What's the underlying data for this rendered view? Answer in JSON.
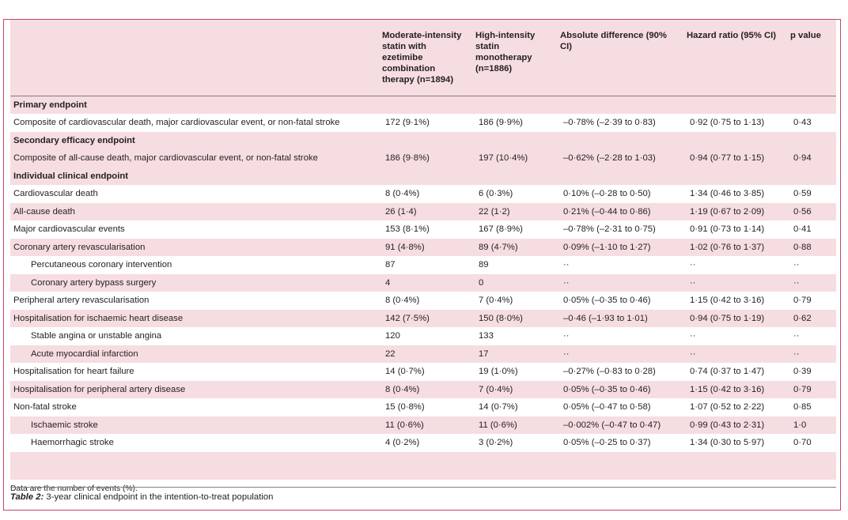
{
  "headers": [
    "",
    "Moderate-intensity statin with ezetimibe combination therapy (n=1894)",
    "High-intensity statin monotherapy (n=1886)",
    "Absolute difference (90% CI)",
    "Hazard ratio (95% CI)",
    "p value"
  ],
  "rows": [
    {
      "type": "section",
      "label": "Primary endpoint"
    },
    {
      "type": "data",
      "label": "Composite of cardiovascular death, major cardiovascular event, or non-fatal stroke",
      "a": "172 (9·1%)",
      "b": "186 (9·9%)",
      "diff": "–0·78% (–2·39 to 0·83)",
      "hr": "0·92 (0·75 to 1·13)",
      "p": "0·43"
    },
    {
      "type": "section",
      "label": "Secondary efficacy endpoint"
    },
    {
      "type": "data",
      "label": "Composite of all-cause death, major cardiovascular event, or non-fatal stroke",
      "a": "186 (9·8%)",
      "b": "197 (10·4%)",
      "diff": "–0·62% (–2·28 to 1·03)",
      "hr": "0·94 (0·77 to 1·15)",
      "p": "0·94"
    },
    {
      "type": "section",
      "label": "Individual clinical endpoint"
    },
    {
      "type": "data",
      "label": "Cardiovascular death",
      "a": "8 (0·4%)",
      "b": "6 (0·3%)",
      "diff": "0·10% (–0·28 to 0·50)",
      "hr": "1·34 (0·46 to 3·85)",
      "p": "0·59"
    },
    {
      "type": "data",
      "label": "All-cause death",
      "a": "26 (1·4)",
      "b": "22 (1·2)",
      "diff": "0·21% (–0·44 to 0·86)",
      "hr": "1·19 (0·67 to 2·09)",
      "p": "0·56"
    },
    {
      "type": "data",
      "label": "Major cardiovascular events",
      "a": "153 (8·1%)",
      "b": "167 (8·9%)",
      "diff": "–0·78% (–2·31 to 0·75)",
      "hr": "0·91 (0·73 to 1·14)",
      "p": "0·41"
    },
    {
      "type": "data",
      "label": "Coronary artery revascularisation",
      "a": "91 (4·8%)",
      "b": "89 (4·7%)",
      "diff": "0·09% (–1·10 to 1·27)",
      "hr": "1·02 (0·76 to 1·37)",
      "p": "0·88"
    },
    {
      "type": "sub",
      "label": "Percutaneous coronary intervention",
      "a": "87",
      "b": "89",
      "diff": "··",
      "hr": "··",
      "p": "··"
    },
    {
      "type": "sub",
      "label": "Coronary artery bypass surgery",
      "a": "4",
      "b": "0",
      "diff": "··",
      "hr": "··",
      "p": "··"
    },
    {
      "type": "data",
      "label": "Peripheral artery revascularisation",
      "a": "8 (0·4%)",
      "b": "7 (0·4%)",
      "diff": "0·05% (–0·35 to 0·46)",
      "hr": "1·15 (0·42 to 3·16)",
      "p": "0·79"
    },
    {
      "type": "data",
      "label": "Hospitalisation for ischaemic heart disease",
      "a": "142 (7·5%)",
      "b": "150 (8·0%)",
      "diff": "–0·46 (–1·93 to 1·01)",
      "hr": "0·94 (0·75 to 1·19)",
      "p": "0·62"
    },
    {
      "type": "sub",
      "label": "Stable angina or unstable angina",
      "a": "120",
      "b": "133",
      "diff": "··",
      "hr": "··",
      "p": "··"
    },
    {
      "type": "sub",
      "label": "Acute myocardial infarction",
      "a": "22",
      "b": "17",
      "diff": "··",
      "hr": "··",
      "p": "··"
    },
    {
      "type": "data",
      "label": "Hospitalisation for heart failure",
      "a": "14 (0·7%)",
      "b": "19 (1·0%)",
      "diff": "–0·27% (–0·83 to 0·28)",
      "hr": "0·74 (0·37 to 1·47)",
      "p": "0·39"
    },
    {
      "type": "data",
      "label": "Hospitalisation for peripheral artery disease",
      "a": "8 (0·4%)",
      "b": "7 (0·4%)",
      "diff": "0·05% (–0·35 to 0·46)",
      "hr": "1·15 (0·42 to 3·16)",
      "p": "0·79"
    },
    {
      "type": "data",
      "label": "Non-fatal stroke",
      "a": "15 (0·8%)",
      "b": "14 (0·7%)",
      "diff": "0·05% (–0·47 to 0·58)",
      "hr": "1·07 (0·52 to 2·22)",
      "p": "0·85"
    },
    {
      "type": "sub",
      "label": "Ischaemic stroke",
      "a": "11 (0·6%)",
      "b": "11 (0·6%)",
      "diff": "–0·002% (–0·47 to 0·47)",
      "hr": "0·99 (0·43 to 2·31)",
      "p": "1·0"
    },
    {
      "type": "sub",
      "label": "Haemorrhagic stroke",
      "a": "4 (0·2%)",
      "b": "3 (0·2%)",
      "diff": "0·05% (–0·25 to 0·37)",
      "hr": "1·34 (0·30 to 5·97)",
      "p": "0·70"
    }
  ],
  "footnote": "Data are the number of events (%).",
  "caption": {
    "label": "Table 2:",
    "text": " 3-year clinical endpoint in the intention-to-treat population"
  },
  "colors": {
    "table_bg": "#f6dde1",
    "row_white": "#ffffff",
    "frame_border": "#c9436a",
    "rule": "#8a7a7c"
  }
}
